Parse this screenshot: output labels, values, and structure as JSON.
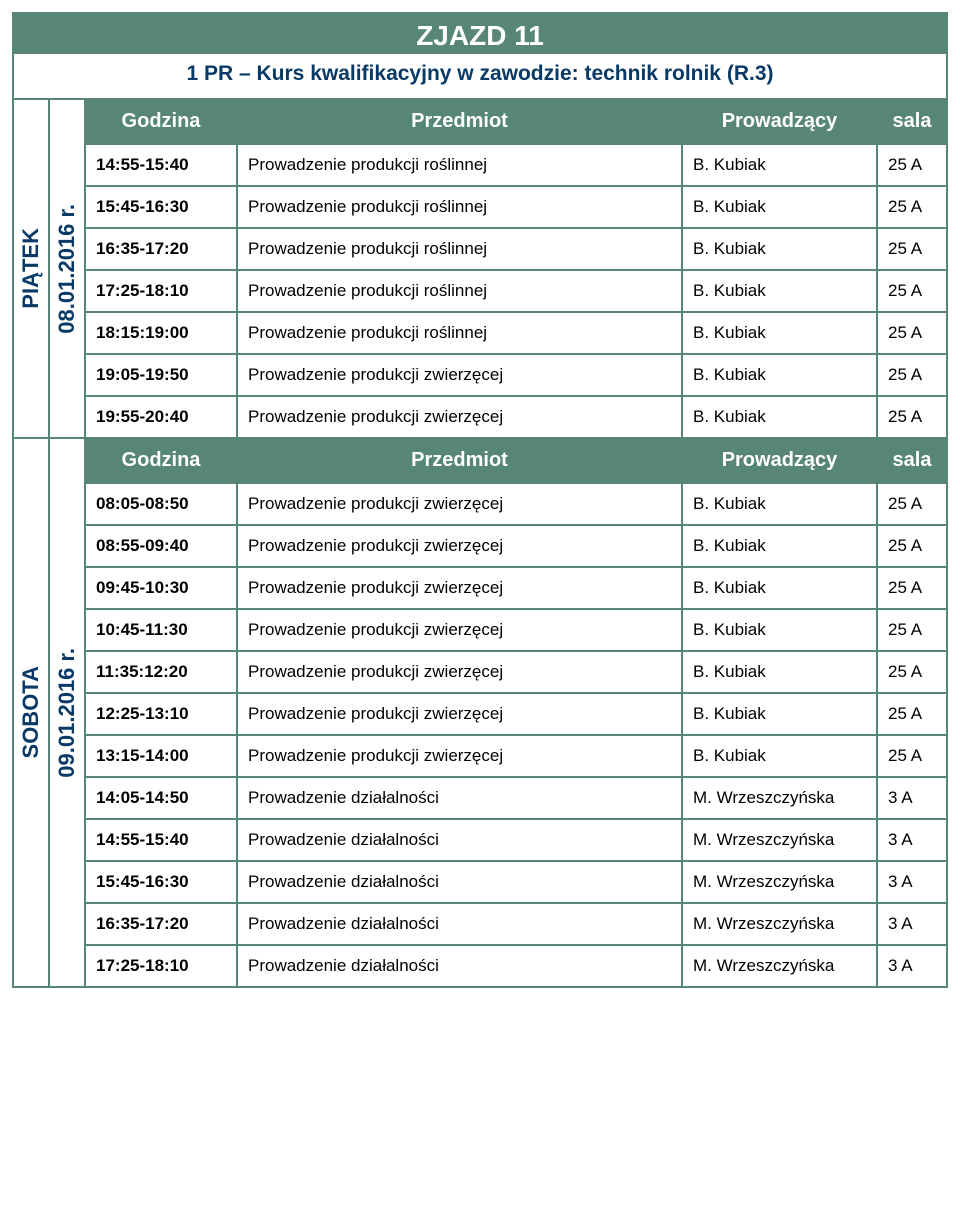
{
  "colors": {
    "accent": "#578676",
    "darkblue": "#093966",
    "text": "#000000",
    "bg": "#ffffff"
  },
  "title": "ZJAZD 11",
  "subtitle": "1 PR – Kurs  kwalifikacyjny w zawodzie: technik rolnik  (R.3)",
  "header": {
    "time": "Godzina",
    "subject": "Przedmiot",
    "lecturer": "Prowadzący",
    "room": "sala"
  },
  "days": [
    {
      "day_label": "PIĄTEK",
      "date_label": "08.01.2016 r.",
      "show_header": true,
      "rows": [
        {
          "time": "14:55-15:40",
          "subject": "Prowadzenie produkcji roślinnej",
          "lecturer": "B. Kubiak",
          "room": "25 A"
        },
        {
          "time": "15:45-16:30",
          "subject": "Prowadzenie produkcji roślinnej",
          "lecturer": "B. Kubiak",
          "room": "25 A"
        },
        {
          "time": "16:35-17:20",
          "subject": "Prowadzenie produkcji roślinnej",
          "lecturer": "B. Kubiak",
          "room": "25 A"
        },
        {
          "time": "17:25-18:10",
          "subject": "Prowadzenie produkcji roślinnej",
          "lecturer": "B. Kubiak",
          "room": "25 A"
        },
        {
          "time": "18:15:19:00",
          "subject": "Prowadzenie produkcji roślinnej",
          "lecturer": "B. Kubiak",
          "room": "25 A"
        },
        {
          "time": "19:05-19:50",
          "subject": "Prowadzenie produkcji zwierzęcej",
          "lecturer": "B. Kubiak",
          "room": "25 A"
        },
        {
          "time": "19:55-20:40",
          "subject": "Prowadzenie produkcji zwierzęcej",
          "lecturer": "B. Kubiak",
          "room": "25 A"
        }
      ]
    },
    {
      "day_label": "SOBOTA",
      "date_label": "09.01.2016 r.",
      "show_header": true,
      "rows": [
        {
          "time": "08:05-08:50",
          "subject": "Prowadzenie produkcji zwierzęcej",
          "lecturer": "B. Kubiak",
          "room": "25 A"
        },
        {
          "time": "08:55-09:40",
          "subject": "Prowadzenie produkcji zwierzęcej",
          "lecturer": "B. Kubiak",
          "room": "25 A"
        },
        {
          "time": "09:45-10:30",
          "subject": "Prowadzenie produkcji zwierzęcej",
          "lecturer": "B. Kubiak",
          "room": "25 A"
        },
        {
          "time": "10:45-11:30",
          "subject": "Prowadzenie produkcji zwierzęcej",
          "lecturer": "B. Kubiak",
          "room": "25 A"
        },
        {
          "time": "11:35:12:20",
          "subject": "Prowadzenie produkcji zwierzęcej",
          "lecturer": "B. Kubiak",
          "room": "25 A"
        },
        {
          "time": "12:25-13:10",
          "subject": "Prowadzenie produkcji zwierzęcej",
          "lecturer": "B. Kubiak",
          "room": "25 A"
        },
        {
          "time": "13:15-14:00",
          "subject": "Prowadzenie produkcji zwierzęcej",
          "lecturer": "B. Kubiak",
          "room": "25 A"
        },
        {
          "time": "14:05-14:50",
          "subject": "Prowadzenie działalności",
          "lecturer": "M. Wrzeszczyńska",
          "room": "3 A"
        },
        {
          "time": "14:55-15:40",
          "subject": "Prowadzenie działalności",
          "lecturer": "M. Wrzeszczyńska",
          "room": "3 A"
        },
        {
          "time": "15:45-16:30",
          "subject": "Prowadzenie działalności",
          "lecturer": "M. Wrzeszczyńska",
          "room": "3 A"
        },
        {
          "time": "16:35-17:20",
          "subject": "Prowadzenie działalności",
          "lecturer": "M. Wrzeszczyńska",
          "room": "3 A"
        },
        {
          "time": "17:25-18:10",
          "subject": "Prowadzenie działalności",
          "lecturer": "M. Wrzeszczyńska",
          "room": "3 A"
        }
      ]
    }
  ]
}
